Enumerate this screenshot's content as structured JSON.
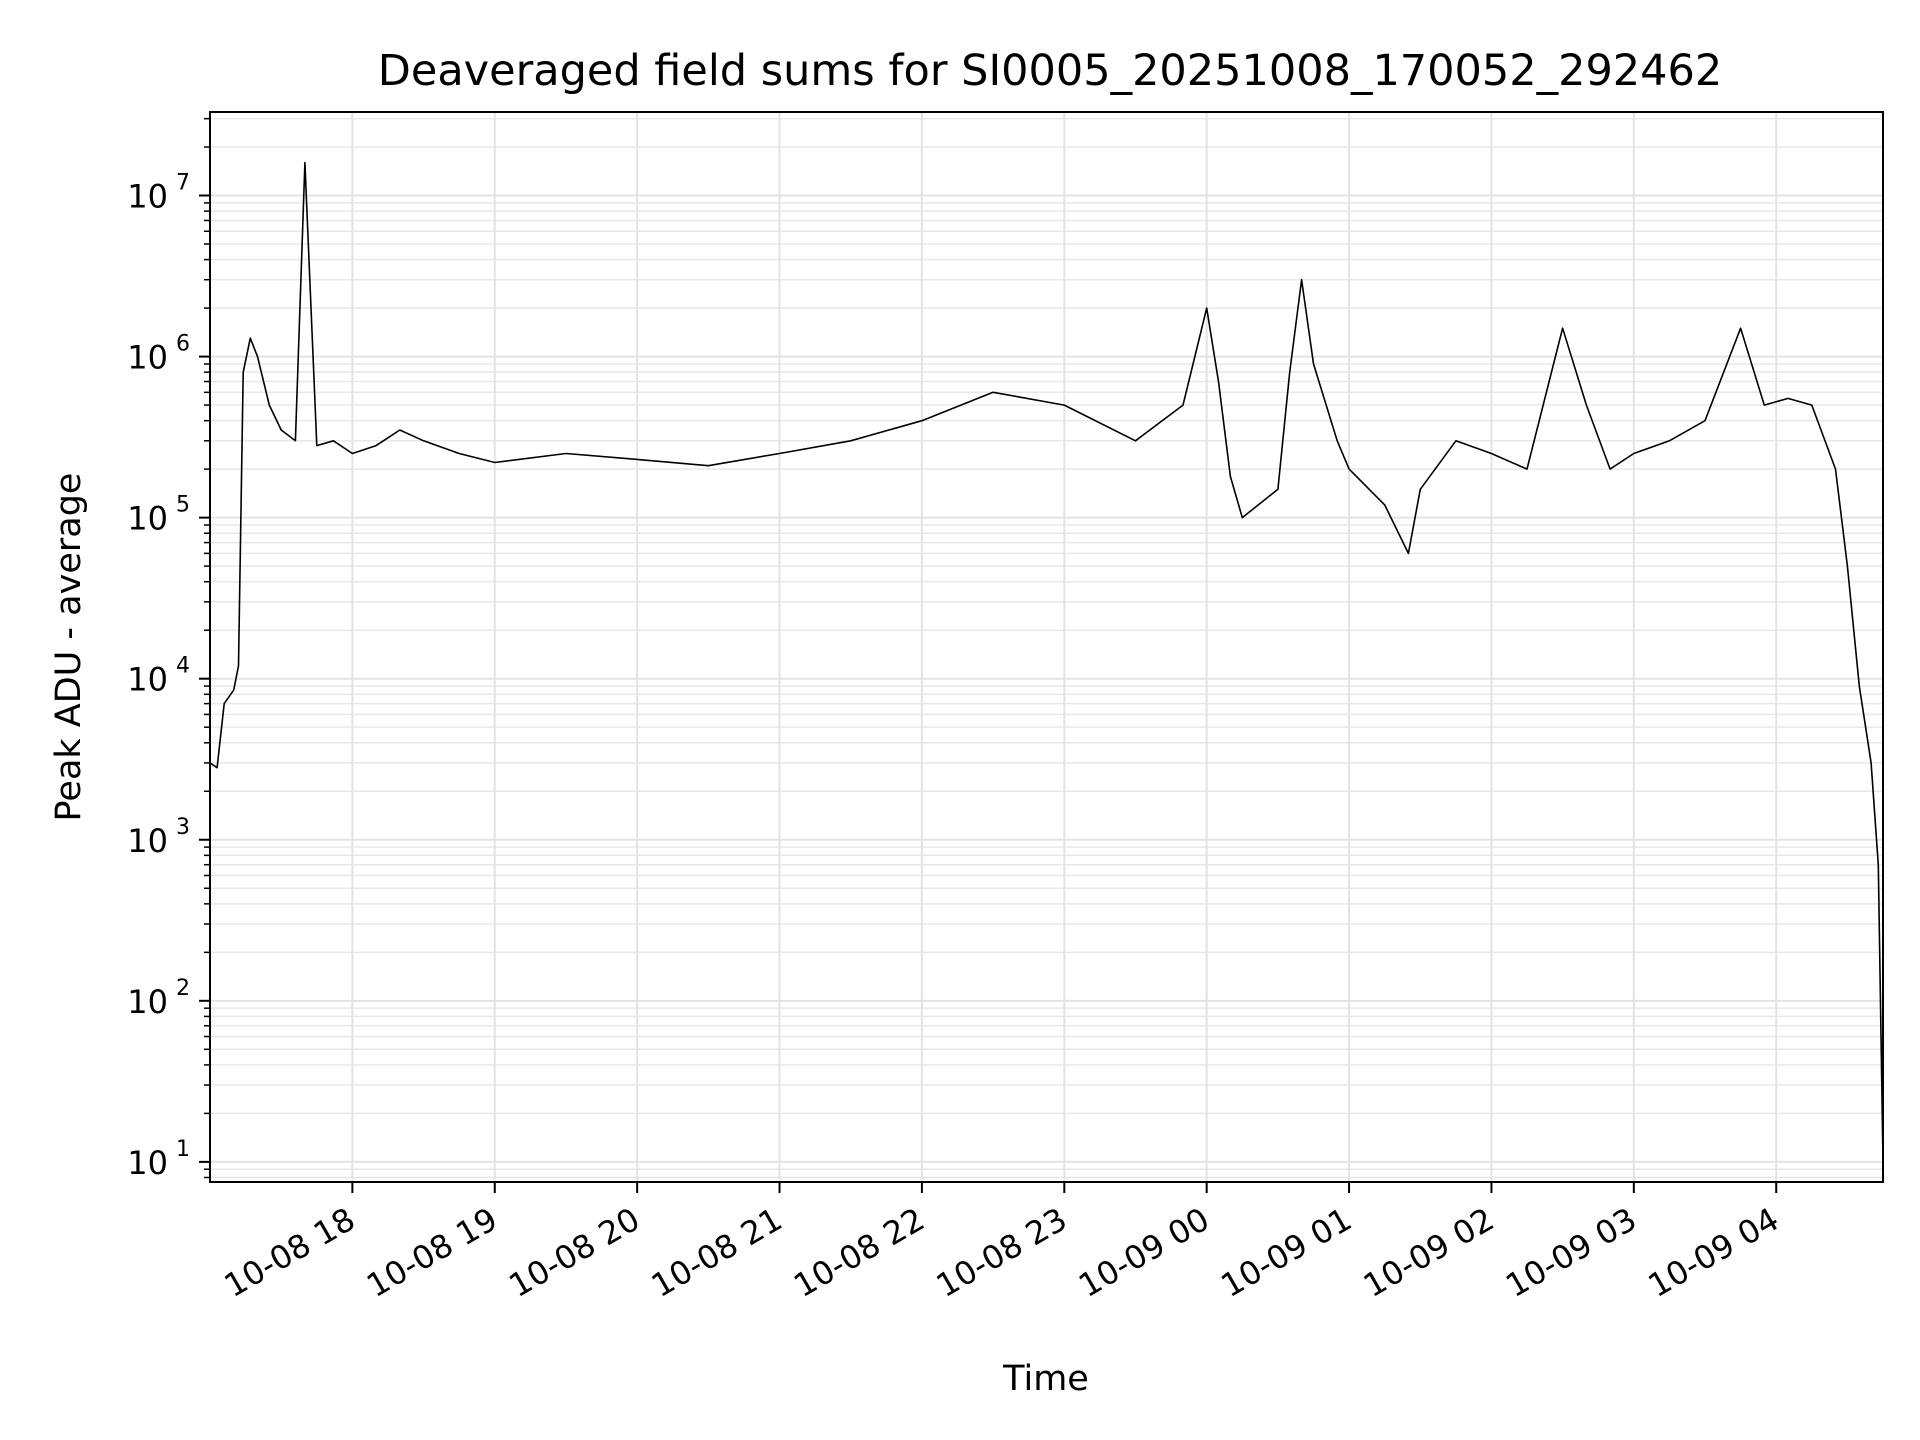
{
  "chart_data": {
    "type": "line",
    "title": "Deaveraged field sums for SI0005_20251008_170052_292462",
    "xlabel": "Time",
    "ylabel": "Peak ADU - average",
    "yscale": "log",
    "ylim": [
      7.5,
      33000000
    ],
    "xlim": [
      "2025-10-08 17:00",
      "2025-10-09 04:45"
    ],
    "grid": true,
    "line_color": "#000000",
    "x_ticks": [
      "10-08 18",
      "10-08 19",
      "10-08 20",
      "10-08 21",
      "10-08 22",
      "10-08 23",
      "10-09 00",
      "10-09 01",
      "10-09 02",
      "10-09 03",
      "10-09 04"
    ],
    "y_ticks": [
      {
        "value": 10,
        "base": "10",
        "exp": "1"
      },
      {
        "value": 100,
        "base": "10",
        "exp": "2"
      },
      {
        "value": 1000,
        "base": "10",
        "exp": "3"
      },
      {
        "value": 10000,
        "base": "10",
        "exp": "4"
      },
      {
        "value": 100000,
        "base": "10",
        "exp": "5"
      },
      {
        "value": 1000000,
        "base": "10",
        "exp": "6"
      },
      {
        "value": 10000000,
        "base": "10",
        "exp": "7"
      }
    ],
    "series": [
      {
        "x": [
          "2025-10-08 17:00",
          "2025-10-08 17:03",
          "2025-10-08 17:06",
          "2025-10-08 17:10",
          "2025-10-08 17:12",
          "2025-10-08 17:14",
          "2025-10-08 17:17",
          "2025-10-08 17:20",
          "2025-10-08 17:25",
          "2025-10-08 17:30",
          "2025-10-08 17:36",
          "2025-10-08 17:40",
          "2025-10-08 17:45",
          "2025-10-08 17:52",
          "2025-10-08 18:00",
          "2025-10-08 18:10",
          "2025-10-08 18:20",
          "2025-10-08 18:30",
          "2025-10-08 18:45",
          "2025-10-08 19:00",
          "2025-10-08 19:30",
          "2025-10-08 20:00",
          "2025-10-08 20:30",
          "2025-10-08 21:00",
          "2025-10-08 21:30",
          "2025-10-08 22:00",
          "2025-10-08 22:30",
          "2025-10-08 23:00",
          "2025-10-08 23:30",
          "2025-10-08 23:50",
          "2025-10-09 00:00",
          "2025-10-09 00:05",
          "2025-10-09 00:10",
          "2025-10-09 00:15",
          "2025-10-09 00:30",
          "2025-10-09 00:35",
          "2025-10-09 00:40",
          "2025-10-09 00:45",
          "2025-10-09 00:55",
          "2025-10-09 01:00",
          "2025-10-09 01:15",
          "2025-10-09 01:25",
          "2025-10-09 01:30",
          "2025-10-09 01:45",
          "2025-10-09 02:00",
          "2025-10-09 02:15",
          "2025-10-09 02:30",
          "2025-10-09 02:40",
          "2025-10-09 02:50",
          "2025-10-09 03:00",
          "2025-10-09 03:15",
          "2025-10-09 03:30",
          "2025-10-09 03:45",
          "2025-10-09 03:55",
          "2025-10-09 04:05",
          "2025-10-09 04:15",
          "2025-10-09 04:25",
          "2025-10-09 04:30",
          "2025-10-09 04:35",
          "2025-10-09 04:40",
          "2025-10-09 04:43",
          "2025-10-09 04:45"
        ],
        "y": [
          3000,
          2800,
          7000,
          8500,
          12000,
          800000,
          1300000,
          1000000,
          500000,
          350000,
          300000,
          16000000,
          280000,
          300000,
          250000,
          280000,
          350000,
          300000,
          250000,
          220000,
          250000,
          230000,
          210000,
          250000,
          300000,
          400000,
          600000,
          500000,
          300000,
          500000,
          2000000,
          700000,
          180000,
          100000,
          150000,
          800000,
          3000000,
          900000,
          300000,
          200000,
          120000,
          60000,
          150000,
          300000,
          250000,
          200000,
          1500000,
          500000,
          200000,
          250000,
          300000,
          400000,
          1500000,
          500000,
          550000,
          500000,
          200000,
          50000,
          9000,
          3000,
          700,
          10
        ]
      }
    ]
  }
}
